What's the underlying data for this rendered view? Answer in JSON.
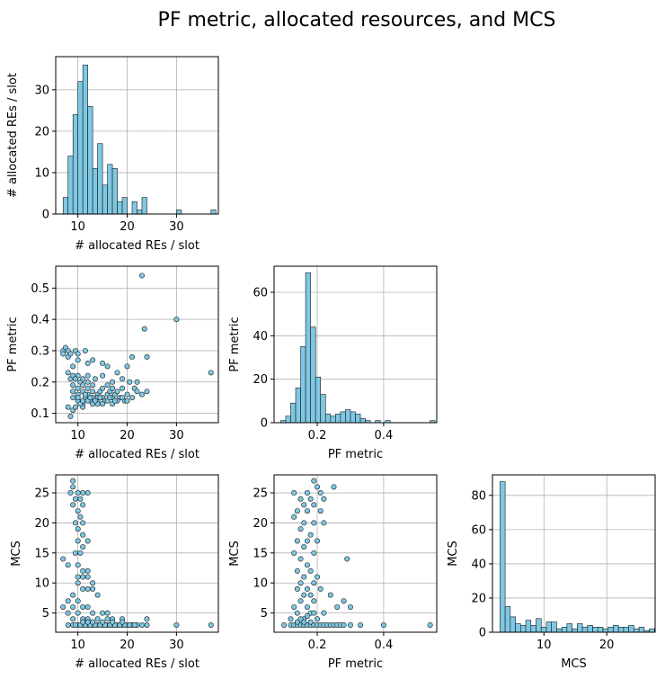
{
  "figure": {
    "title": "PF metric, allocated resources, and MCS"
  },
  "colors": {
    "fill": "#7ec8e3",
    "edge": "#1a1a1a",
    "grid": "#b0b0b0",
    "axis": "#000000"
  },
  "chart_data": [
    {
      "id": "hist_res",
      "type": "bar",
      "subtype": "histogram",
      "xlabel": "# allocated REs / slot",
      "ylabel": "# allocated REs / slot",
      "xlim": [
        5.5,
        38.5
      ],
      "ylim": [
        0,
        38
      ],
      "xticks": [
        10,
        20,
        30
      ],
      "yticks": [
        0,
        10,
        20,
        30
      ],
      "grid": true,
      "bins_start": 7,
      "bin_width": 1,
      "counts": [
        4,
        14,
        24,
        32,
        36,
        26,
        11,
        17,
        7,
        12,
        11,
        3,
        4,
        0,
        3,
        1,
        4,
        0,
        0,
        0,
        0,
        0,
        0,
        1,
        0,
        0,
        0,
        0,
        0,
        0,
        1
      ]
    },
    {
      "id": "scatter_res_pf",
      "type": "scatter",
      "xlabel": "# allocated REs / slot",
      "ylabel": "PF metric",
      "xlim": [
        5.5,
        38.5
      ],
      "ylim": [
        0.07,
        0.57
      ],
      "xticks": [
        10,
        20,
        30
      ],
      "yticks": [
        0.1,
        0.2,
        0.3,
        0.4,
        0.5
      ],
      "grid": true,
      "points": [
        [
          7,
          0.3
        ],
        [
          7,
          0.29
        ],
        [
          7.5,
          0.31
        ],
        [
          8,
          0.3
        ],
        [
          8,
          0.28
        ],
        [
          8.5,
          0.29
        ],
        [
          8,
          0.23
        ],
        [
          8.5,
          0.21
        ],
        [
          9,
          0.22
        ],
        [
          9,
          0.19
        ],
        [
          9,
          0.17
        ],
        [
          9.5,
          0.3
        ],
        [
          10,
          0.29
        ],
        [
          10,
          0.27
        ],
        [
          9,
          0.25
        ],
        [
          8,
          0.12
        ],
        [
          8.5,
          0.09
        ],
        [
          9,
          0.11
        ],
        [
          9.5,
          0.12
        ],
        [
          10,
          0.14
        ],
        [
          10,
          0.16
        ],
        [
          10,
          0.18
        ],
        [
          10.5,
          0.2
        ],
        [
          11,
          0.21
        ],
        [
          11,
          0.19
        ],
        [
          11,
          0.17
        ],
        [
          11.5,
          0.15
        ],
        [
          11,
          0.13
        ],
        [
          11,
          0.12
        ],
        [
          11.5,
          0.3
        ],
        [
          12,
          0.26
        ],
        [
          12,
          0.22
        ],
        [
          12,
          0.2
        ],
        [
          12,
          0.18
        ],
        [
          12,
          0.16
        ],
        [
          12.5,
          0.14
        ],
        [
          13,
          0.15
        ],
        [
          13,
          0.17
        ],
        [
          13,
          0.19
        ],
        [
          13,
          0.27
        ],
        [
          13.5,
          0.21
        ],
        [
          14,
          0.16
        ],
        [
          14,
          0.14
        ],
        [
          14,
          0.13
        ],
        [
          14.5,
          0.17
        ],
        [
          15,
          0.15
        ],
        [
          15,
          0.18
        ],
        [
          15,
          0.22
        ],
        [
          15,
          0.26
        ],
        [
          15.5,
          0.14
        ],
        [
          16,
          0.16
        ],
        [
          16,
          0.19
        ],
        [
          16,
          0.25
        ],
        [
          16.5,
          0.17
        ],
        [
          17,
          0.15
        ],
        [
          17,
          0.18
        ],
        [
          17,
          0.2
        ],
        [
          17.5,
          0.16
        ],
        [
          18,
          0.17
        ],
        [
          18,
          0.23
        ],
        [
          18.5,
          0.15
        ],
        [
          19,
          0.18
        ],
        [
          19,
          0.21
        ],
        [
          19.5,
          0.14
        ],
        [
          20,
          0.25
        ],
        [
          20,
          0.16
        ],
        [
          20.5,
          0.2
        ],
        [
          21,
          0.28
        ],
        [
          21,
          0.15
        ],
        [
          21.5,
          0.18
        ],
        [
          22,
          0.17
        ],
        [
          22,
          0.2
        ],
        [
          23,
          0.54
        ],
        [
          23,
          0.16
        ],
        [
          23.5,
          0.37
        ],
        [
          24,
          0.17
        ],
        [
          24,
          0.28
        ],
        [
          30,
          0.4
        ],
        [
          37,
          0.23
        ],
        [
          10,
          0.15
        ],
        [
          10.5,
          0.13
        ],
        [
          11,
          0.14
        ],
        [
          12,
          0.14
        ],
        [
          12.5,
          0.15
        ],
        [
          13,
          0.13
        ],
        [
          14,
          0.15
        ],
        [
          15,
          0.13
        ],
        [
          16,
          0.14
        ],
        [
          17,
          0.13
        ],
        [
          18,
          0.14
        ],
        [
          10,
          0.22
        ],
        [
          9.5,
          0.21
        ],
        [
          9,
          0.15
        ],
        [
          11.5,
          0.16
        ],
        [
          13.5,
          0.14
        ],
        [
          14.5,
          0.15
        ],
        [
          16.5,
          0.15
        ],
        [
          17.5,
          0.14
        ],
        [
          19,
          0.15
        ],
        [
          20,
          0.14
        ]
      ]
    },
    {
      "id": "hist_pf",
      "type": "bar",
      "subtype": "histogram",
      "xlabel": "PF metric",
      "ylabel": "PF metric",
      "xlim": [
        0.07,
        0.56
      ],
      "ylim": [
        0,
        72
      ],
      "xticks": [
        0.2,
        0.4
      ],
      "yticks": [
        0,
        20,
        40,
        60
      ],
      "grid": true,
      "bins_start": 0.09,
      "bin_width": 0.015,
      "counts": [
        1,
        3,
        9,
        16,
        35,
        69,
        44,
        21,
        13,
        4,
        3,
        4,
        5,
        6,
        5,
        4,
        2,
        1,
        0,
        1,
        0,
        1,
        0,
        0,
        0,
        0,
        0,
        0,
        0,
        0,
        1
      ]
    },
    {
      "id": "scatter_res_mcs",
      "type": "scatter",
      "xlabel": "# allocated REs / slot",
      "ylabel": "MCS",
      "xlim": [
        5.5,
        38.5
      ],
      "ylim": [
        1.8,
        28
      ],
      "xticks": [
        10,
        20,
        30
      ],
      "yticks": [
        5,
        10,
        15,
        20,
        25
      ],
      "grid": true,
      "points": [
        [
          9,
          27
        ],
        [
          9,
          26
        ],
        [
          8.5,
          25
        ],
        [
          10,
          25
        ],
        [
          11,
          25
        ],
        [
          9.5,
          24
        ],
        [
          10.5,
          24
        ],
        [
          12,
          25
        ],
        [
          9,
          23
        ],
        [
          11,
          23
        ],
        [
          10,
          22
        ],
        [
          10.5,
          21
        ],
        [
          11,
          20
        ],
        [
          9.5,
          20
        ],
        [
          10,
          19
        ],
        [
          11,
          18
        ],
        [
          12,
          17
        ],
        [
          10,
          17
        ],
        [
          11,
          16
        ],
        [
          9.5,
          15
        ],
        [
          10.5,
          15
        ],
        [
          7,
          14
        ],
        [
          8,
          13
        ],
        [
          10,
          13
        ],
        [
          11,
          12
        ],
        [
          12,
          12
        ],
        [
          10,
          11
        ],
        [
          11,
          11
        ],
        [
          12,
          11
        ],
        [
          13,
          10
        ],
        [
          10,
          10
        ],
        [
          11,
          9
        ],
        [
          12,
          9
        ],
        [
          13,
          9
        ],
        [
          14,
          8
        ],
        [
          9,
          8
        ],
        [
          10,
          7
        ],
        [
          8,
          7
        ],
        [
          7,
          6
        ],
        [
          9,
          6
        ],
        [
          11,
          6
        ],
        [
          12,
          6
        ],
        [
          8,
          5
        ],
        [
          10,
          5
        ],
        [
          13,
          5
        ],
        [
          15,
          5
        ],
        [
          16,
          5
        ],
        [
          9,
          4
        ],
        [
          11,
          4
        ],
        [
          12,
          4
        ],
        [
          14,
          4
        ],
        [
          16,
          4
        ],
        [
          17,
          4
        ],
        [
          19,
          4
        ],
        [
          24,
          4
        ],
        [
          10,
          3
        ],
        [
          11,
          3
        ],
        [
          12,
          3
        ],
        [
          13,
          3
        ],
        [
          14,
          3
        ],
        [
          15,
          3
        ],
        [
          16,
          3
        ],
        [
          17,
          3
        ],
        [
          18,
          3
        ],
        [
          19,
          3
        ],
        [
          20,
          3
        ],
        [
          21,
          3
        ],
        [
          22,
          3
        ],
        [
          23,
          3
        ],
        [
          24,
          3
        ],
        [
          8,
          3
        ],
        [
          9,
          3
        ],
        [
          30,
          3
        ],
        [
          37,
          3
        ],
        [
          12.5,
          3
        ],
        [
          13.5,
          3
        ],
        [
          14.5,
          3
        ],
        [
          15.5,
          3
        ],
        [
          16.5,
          3
        ],
        [
          17.5,
          3
        ],
        [
          18.5,
          3
        ],
        [
          19.5,
          3
        ],
        [
          20.5,
          3
        ],
        [
          21.5,
          3
        ],
        [
          10.5,
          3
        ],
        [
          11.5,
          3
        ],
        [
          9.5,
          3
        ],
        [
          13,
          3.5
        ],
        [
          15,
          3.5
        ],
        [
          17,
          3.5
        ],
        [
          11,
          3.5
        ],
        [
          19,
          3.5
        ],
        [
          12,
          3.5
        ]
      ]
    },
    {
      "id": "scatter_pf_mcs",
      "type": "scatter",
      "xlabel": "PF metric",
      "ylabel": "MCS",
      "xlim": [
        0.07,
        0.56
      ],
      "ylim": [
        1.8,
        28
      ],
      "xticks": [
        0.2,
        0.4
      ],
      "yticks": [
        5,
        10,
        15,
        20,
        25
      ],
      "grid": true,
      "points": [
        [
          0.19,
          27
        ],
        [
          0.2,
          26
        ],
        [
          0.25,
          26
        ],
        [
          0.13,
          25
        ],
        [
          0.17,
          25
        ],
        [
          0.21,
          25
        ],
        [
          0.15,
          24
        ],
        [
          0.18,
          24
        ],
        [
          0.22,
          24
        ],
        [
          0.16,
          23
        ],
        [
          0.19,
          23
        ],
        [
          0.14,
          22
        ],
        [
          0.17,
          22
        ],
        [
          0.21,
          22
        ],
        [
          0.13,
          21
        ],
        [
          0.16,
          20
        ],
        [
          0.19,
          20
        ],
        [
          0.22,
          20
        ],
        [
          0.15,
          19
        ],
        [
          0.18,
          18
        ],
        [
          0.14,
          17
        ],
        [
          0.17,
          17
        ],
        [
          0.2,
          17
        ],
        [
          0.16,
          16
        ],
        [
          0.13,
          15
        ],
        [
          0.19,
          15
        ],
        [
          0.15,
          14
        ],
        [
          0.29,
          14
        ],
        [
          0.17,
          13
        ],
        [
          0.14,
          12
        ],
        [
          0.18,
          12
        ],
        [
          0.16,
          11
        ],
        [
          0.2,
          11
        ],
        [
          0.15,
          10
        ],
        [
          0.19,
          10
        ],
        [
          0.14,
          9
        ],
        [
          0.17,
          9
        ],
        [
          0.21,
          9
        ],
        [
          0.16,
          8
        ],
        [
          0.18,
          8
        ],
        [
          0.24,
          8
        ],
        [
          0.15,
          7
        ],
        [
          0.19,
          7
        ],
        [
          0.28,
          7
        ],
        [
          0.13,
          6
        ],
        [
          0.17,
          6
        ],
        [
          0.26,
          6
        ],
        [
          0.3,
          6
        ],
        [
          0.14,
          5
        ],
        [
          0.18,
          5
        ],
        [
          0.22,
          5
        ],
        [
          0.12,
          4
        ],
        [
          0.16,
          4
        ],
        [
          0.2,
          4
        ],
        [
          0.1,
          3
        ],
        [
          0.12,
          3
        ],
        [
          0.13,
          3
        ],
        [
          0.14,
          3
        ],
        [
          0.15,
          3
        ],
        [
          0.16,
          3
        ],
        [
          0.17,
          3
        ],
        [
          0.18,
          3
        ],
        [
          0.19,
          3
        ],
        [
          0.2,
          3
        ],
        [
          0.21,
          3
        ],
        [
          0.22,
          3
        ],
        [
          0.23,
          3
        ],
        [
          0.24,
          3
        ],
        [
          0.25,
          3
        ],
        [
          0.26,
          3
        ],
        [
          0.27,
          3
        ],
        [
          0.28,
          3
        ],
        [
          0.3,
          3
        ],
        [
          0.33,
          3
        ],
        [
          0.4,
          3
        ],
        [
          0.54,
          3
        ],
        [
          0.14,
          3.5
        ],
        [
          0.16,
          3.5
        ],
        [
          0.18,
          3.5
        ],
        [
          0.15,
          4
        ],
        [
          0.17,
          4.5
        ],
        [
          0.19,
          5
        ]
      ]
    },
    {
      "id": "hist_mcs",
      "type": "bar",
      "subtype": "histogram",
      "xlabel": "MCS",
      "ylabel": "MCS",
      "xlim": [
        1.8,
        27.7
      ],
      "ylim": [
        0,
        92
      ],
      "xticks": [
        10,
        20
      ],
      "yticks": [
        0,
        20,
        40,
        60,
        80
      ],
      "grid": true,
      "bins_start": 3,
      "bin_width": 0.82,
      "counts": [
        88,
        15,
        9,
        5,
        4,
        7,
        4,
        8,
        3,
        6,
        6,
        2,
        3,
        5,
        2,
        5,
        3,
        4,
        3,
        3,
        2,
        3,
        4,
        3,
        3,
        4,
        2,
        3,
        1,
        2
      ]
    }
  ]
}
